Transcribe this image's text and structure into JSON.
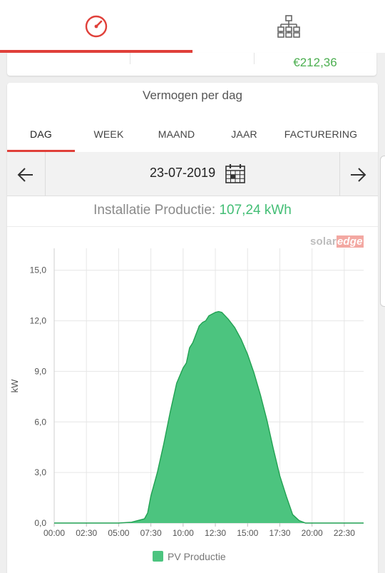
{
  "nav": {
    "tabs": [
      {
        "name": "dashboard",
        "icon": "gauge-icon",
        "active": true
      },
      {
        "name": "layout",
        "icon": "sitemap-icon",
        "active": false
      }
    ],
    "accent": "#e0403a"
  },
  "summary": {
    "income": "€212,36",
    "income_color": "#4caf50"
  },
  "card": {
    "title": "Vermogen per dag",
    "tabs": [
      {
        "label": "DAG",
        "active": true
      },
      {
        "label": "WEEK",
        "active": false
      },
      {
        "label": "MAAND",
        "active": false
      },
      {
        "label": "JAAR",
        "active": false
      },
      {
        "label": "FACTURERING",
        "active": false
      }
    ],
    "date": "23-07-2019",
    "production_label": "Installatie Productie:",
    "production_value": "107,24 kWh",
    "brand_solar": "solar",
    "brand_edge": "edge"
  },
  "chart_data": {
    "type": "area",
    "ylabel": "kW",
    "xlabel": "",
    "ylim": [
      0,
      16.3
    ],
    "xlim": [
      "00:00",
      "24:00"
    ],
    "y_ticks": [
      "0,0",
      "3,0",
      "6,0",
      "9,0",
      "12,0",
      "15,0"
    ],
    "x_ticks": [
      "00:00",
      "02:30",
      "05:00",
      "07:30",
      "10:00",
      "12:30",
      "15:00",
      "17:30",
      "20:00",
      "22:30"
    ],
    "grid": true,
    "legend": "bottom-center",
    "series": [
      {
        "name": "PV Productie",
        "color": "#4cc47f",
        "stroke": "#21a152",
        "x": [
          "00:00",
          "05:00",
          "06:00",
          "07:00",
          "07:15",
          "07:30",
          "08:00",
          "08:30",
          "09:00",
          "09:30",
          "10:00",
          "10:15",
          "10:30",
          "10:45",
          "11:00",
          "11:15",
          "11:30",
          "11:45",
          "12:00",
          "12:15",
          "12:30",
          "12:45",
          "13:00",
          "13:30",
          "14:00",
          "14:30",
          "15:00",
          "15:30",
          "16:00",
          "16:30",
          "17:00",
          "17:30",
          "18:00",
          "18:30",
          "19:00",
          "19:30",
          "20:00",
          "20:30",
          "21:00",
          "21:30",
          "24:00"
        ],
        "values": [
          0,
          0,
          0.05,
          0.25,
          0.6,
          1.6,
          3.0,
          4.7,
          6.6,
          8.3,
          9.2,
          9.5,
          10.4,
          10.7,
          11.2,
          11.7,
          11.9,
          12.0,
          12.3,
          12.4,
          12.5,
          12.55,
          12.5,
          12.1,
          11.6,
          10.9,
          10.0,
          8.9,
          7.6,
          6.1,
          4.4,
          2.8,
          1.6,
          0.5,
          0.15,
          0,
          0,
          0,
          0,
          0,
          0
        ]
      }
    ]
  }
}
